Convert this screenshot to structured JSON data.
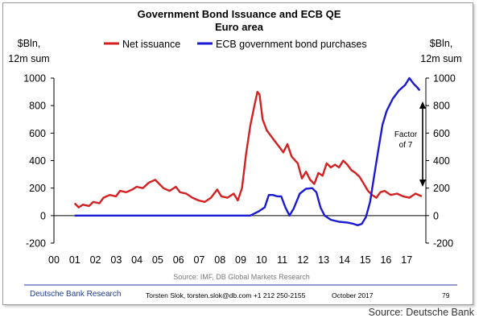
{
  "chart_data": {
    "type": "line",
    "title": "Government Bond Issuance and ECB QE",
    "subtitle": "Euro area",
    "ylabel_left": "$Bln,\n12m sum",
    "ylabel_right": "$Bln,\n12m sum",
    "x_ticks": [
      "00",
      "01",
      "02",
      "03",
      "04",
      "05",
      "06",
      "07",
      "08",
      "09",
      "10",
      "11",
      "12",
      "13",
      "14",
      "15",
      "16",
      "17"
    ],
    "xlim": [
      2000,
      2018
    ],
    "ylim": [
      -200,
      1000
    ],
    "y_ticks": [
      -200,
      0,
      200,
      400,
      600,
      800,
      1000
    ],
    "grid": false,
    "legend_position": "top",
    "annotation": "Factor\nof 7",
    "series": [
      {
        "name": "Net issuance",
        "color": "#d42020",
        "points": [
          [
            2001.0,
            90
          ],
          [
            2001.2,
            60
          ],
          [
            2001.4,
            80
          ],
          [
            2001.7,
            70
          ],
          [
            2001.9,
            100
          ],
          [
            2002.2,
            90
          ],
          [
            2002.4,
            130
          ],
          [
            2002.7,
            150
          ],
          [
            2003.0,
            140
          ],
          [
            2003.2,
            180
          ],
          [
            2003.5,
            170
          ],
          [
            2003.8,
            190
          ],
          [
            2004.0,
            210
          ],
          [
            2004.3,
            200
          ],
          [
            2004.6,
            240
          ],
          [
            2004.9,
            260
          ],
          [
            2005.1,
            230
          ],
          [
            2005.3,
            200
          ],
          [
            2005.6,
            180
          ],
          [
            2005.9,
            210
          ],
          [
            2006.1,
            170
          ],
          [
            2006.4,
            160
          ],
          [
            2006.7,
            130
          ],
          [
            2007.0,
            110
          ],
          [
            2007.3,
            100
          ],
          [
            2007.6,
            130
          ],
          [
            2007.9,
            190
          ],
          [
            2008.1,
            140
          ],
          [
            2008.4,
            130
          ],
          [
            2008.7,
            160
          ],
          [
            2008.9,
            110
          ],
          [
            2009.1,
            200
          ],
          [
            2009.3,
            450
          ],
          [
            2009.5,
            650
          ],
          [
            2009.7,
            800
          ],
          [
            2009.85,
            900
          ],
          [
            2009.95,
            880
          ],
          [
            2010.1,
            700
          ],
          [
            2010.3,
            620
          ],
          [
            2010.5,
            580
          ],
          [
            2010.7,
            540
          ],
          [
            2010.9,
            500
          ],
          [
            2011.1,
            460
          ],
          [
            2011.3,
            520
          ],
          [
            2011.5,
            430
          ],
          [
            2011.8,
            380
          ],
          [
            2012.0,
            270
          ],
          [
            2012.2,
            320
          ],
          [
            2012.4,
            260
          ],
          [
            2012.6,
            230
          ],
          [
            2012.8,
            310
          ],
          [
            2013.0,
            290
          ],
          [
            2013.2,
            380
          ],
          [
            2013.4,
            350
          ],
          [
            2013.6,
            370
          ],
          [
            2013.8,
            350
          ],
          [
            2014.0,
            400
          ],
          [
            2014.2,
            370
          ],
          [
            2014.4,
            330
          ],
          [
            2014.6,
            310
          ],
          [
            2014.8,
            280
          ],
          [
            2015.0,
            230
          ],
          [
            2015.2,
            180
          ],
          [
            2015.4,
            150
          ],
          [
            2015.6,
            130
          ],
          [
            2015.8,
            170
          ],
          [
            2016.0,
            180
          ],
          [
            2016.3,
            150
          ],
          [
            2016.6,
            160
          ],
          [
            2016.9,
            140
          ],
          [
            2017.2,
            130
          ],
          [
            2017.5,
            160
          ],
          [
            2017.8,
            140
          ]
        ]
      },
      {
        "name": "ECB government bond purchases",
        "color": "#1a1ad4",
        "points": [
          [
            2001.0,
            0
          ],
          [
            2002.0,
            0
          ],
          [
            2003.0,
            0
          ],
          [
            2004.0,
            0
          ],
          [
            2005.0,
            0
          ],
          [
            2006.0,
            0
          ],
          [
            2007.0,
            0
          ],
          [
            2008.0,
            0
          ],
          [
            2009.0,
            0
          ],
          [
            2009.5,
            0
          ],
          [
            2009.9,
            30
          ],
          [
            2010.2,
            60
          ],
          [
            2010.4,
            150
          ],
          [
            2010.6,
            150
          ],
          [
            2010.8,
            140
          ],
          [
            2011.0,
            140
          ],
          [
            2011.2,
            60
          ],
          [
            2011.4,
            0
          ],
          [
            2011.6,
            50
          ],
          [
            2011.9,
            160
          ],
          [
            2012.2,
            195
          ],
          [
            2012.5,
            200
          ],
          [
            2012.7,
            170
          ],
          [
            2012.9,
            60
          ],
          [
            2013.1,
            0
          ],
          [
            2013.4,
            -30
          ],
          [
            2013.8,
            -45
          ],
          [
            2014.2,
            -50
          ],
          [
            2014.5,
            -60
          ],
          [
            2014.7,
            -70
          ],
          [
            2014.9,
            -60
          ],
          [
            2015.1,
            -10
          ],
          [
            2015.3,
            100
          ],
          [
            2015.5,
            290
          ],
          [
            2015.7,
            480
          ],
          [
            2015.9,
            660
          ],
          [
            2016.1,
            760
          ],
          [
            2016.4,
            850
          ],
          [
            2016.7,
            910
          ],
          [
            2017.0,
            950
          ],
          [
            2017.2,
            1000
          ],
          [
            2017.4,
            960
          ],
          [
            2017.6,
            930
          ],
          [
            2017.7,
            910
          ]
        ]
      }
    ]
  },
  "footer": {
    "source_note": "Source: IMF, DB Global Markets Research",
    "brand": "Deutsche Bank Research",
    "author": "Torsten Slok, torsten.slok@db.com  +1 212 250-2155",
    "date": "October  2017",
    "page": "79"
  },
  "credit": "Source: Deutsche Bank",
  "colors": {
    "brand_blue": "#1f3d99",
    "footer_rule": "#1f3d99"
  }
}
